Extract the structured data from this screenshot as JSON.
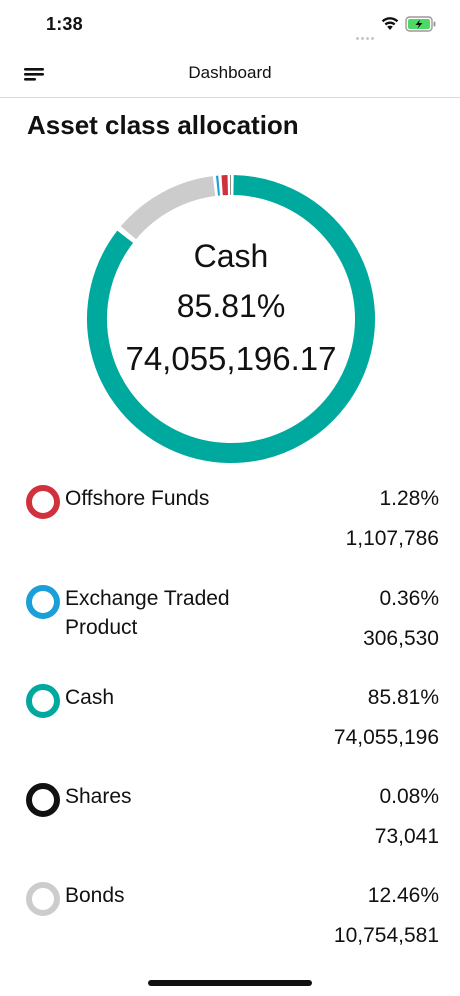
{
  "status_bar": {
    "time": "1:38"
  },
  "nav": {
    "title": "Dashboard",
    "menu_icon": "menu-icon"
  },
  "page": {
    "title": "Asset class allocation"
  },
  "donut": {
    "selected_label": "Cash",
    "selected_percent": "85.81%",
    "selected_value": "74,055,196.17"
  },
  "colors": {
    "offshore_funds": "#d0313d",
    "exchange_traded_product": "#1a9fd8",
    "cash": "#00a99d",
    "shares": "#111111",
    "bonds": "#cccccc"
  },
  "chart_data": {
    "type": "pie",
    "categories": [
      "Offshore Funds",
      "Exchange Traded Product",
      "Cash",
      "Shares",
      "Bonds"
    ],
    "values": [
      1.28,
      0.36,
      85.81,
      0.08,
      12.46
    ],
    "amounts": [
      1107786,
      306530,
      74055196.17,
      73041,
      10754581
    ],
    "colors": [
      "#d0313d",
      "#1a9fd8",
      "#00a99d",
      "#111111",
      "#cccccc"
    ],
    "selected": "Cash"
  },
  "legend": [
    {
      "name": "Offshore Funds",
      "percent": "1.28%",
      "amount": "1,107,786",
      "color": "#d0313d"
    },
    {
      "name": "Exchange Traded Product",
      "percent": "0.36%",
      "amount": "306,530",
      "color": "#1a9fd8"
    },
    {
      "name": "Cash",
      "percent": "85.81%",
      "amount": "74,055,196",
      "color": "#00a99d"
    },
    {
      "name": "Shares",
      "percent": "0.08%",
      "amount": "73,041",
      "color": "#111111"
    },
    {
      "name": "Bonds",
      "percent": "12.46%",
      "amount": "10,754,581",
      "color": "#cccccc"
    }
  ]
}
